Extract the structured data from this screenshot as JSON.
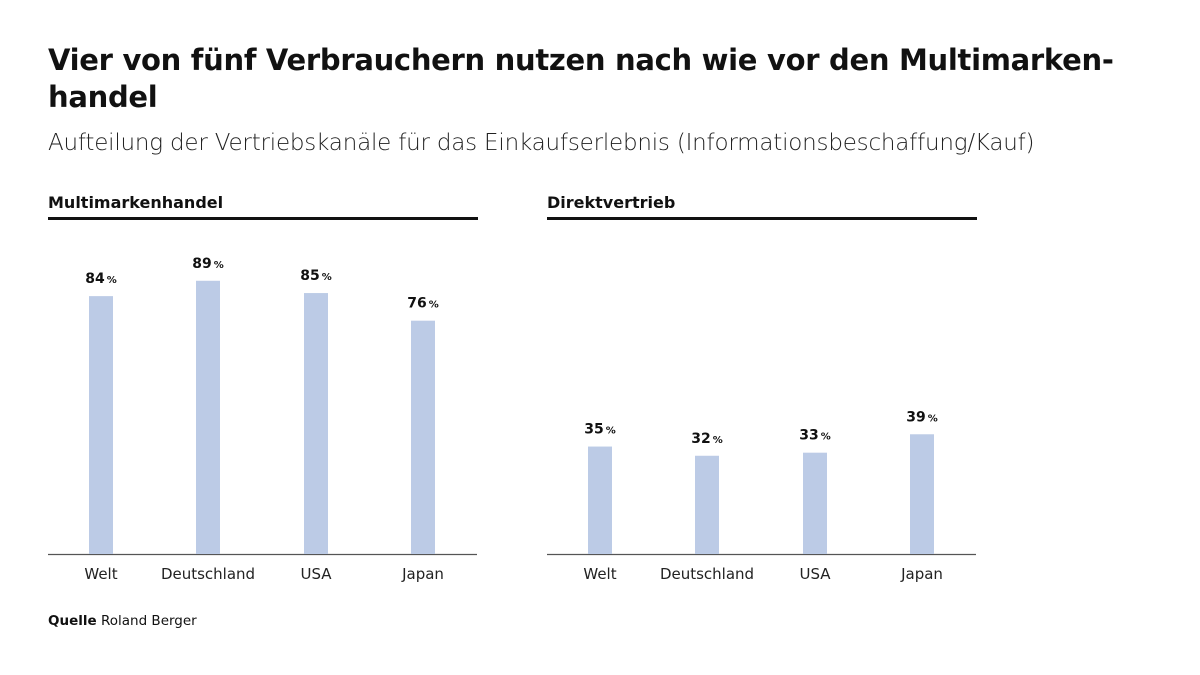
{
  "title": "Vier von fünf Verbrauchern nutzen nach wie vor den Multimarken-handel",
  "subtitle": "Aufteilung der Vertriebskanäle für das Einkaufserlebnis (Informationsbeschaffung/Kauf)",
  "source": {
    "label": "Quelle",
    "text": "Roland Berger"
  },
  "chart_data": [
    {
      "type": "bar",
      "title": "Multimarkenhandel",
      "categories": [
        "Welt",
        "Deutschland",
        "USA",
        "Japan"
      ],
      "values": [
        84,
        89,
        85,
        76
      ],
      "unit": "%",
      "ylim": [
        0,
        100
      ],
      "grid": false,
      "bar_color": "#bccbe6"
    },
    {
      "type": "bar",
      "title": "Direktvertrieb",
      "categories": [
        "Welt",
        "Deutschland",
        "USA",
        "Japan"
      ],
      "values": [
        35,
        32,
        33,
        39
      ],
      "unit": "%",
      "ylim": [
        0,
        100
      ],
      "grid": false,
      "bar_color": "#bccbe6"
    }
  ]
}
